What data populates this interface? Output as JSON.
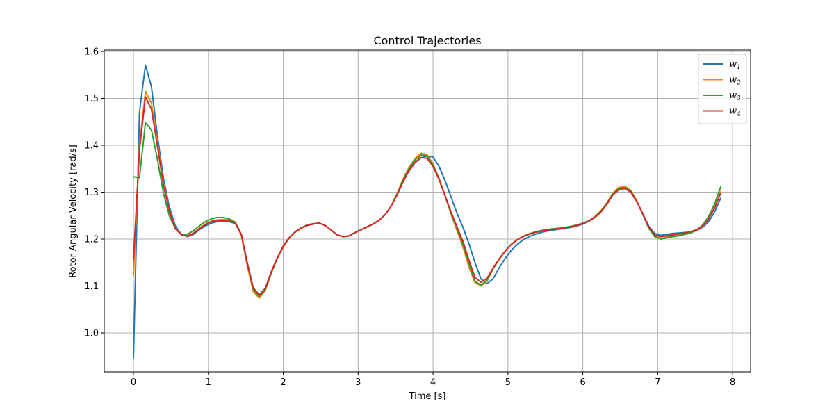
{
  "chart_data": {
    "type": "line",
    "title": "Control Trajectories",
    "xlabel": "Time [s]",
    "ylabel": "Rotor Angular Velocity [rad/s]",
    "xlim": [
      -0.39,
      8.24
    ],
    "ylim": [
      0.917,
      1.603
    ],
    "xticks": [
      0,
      1,
      2,
      3,
      4,
      5,
      6,
      7,
      8
    ],
    "xtick_labels": [
      "0",
      "1",
      "2",
      "3",
      "4",
      "5",
      "6",
      "7",
      "8"
    ],
    "yticks": [
      1.0,
      1.1,
      1.2,
      1.3,
      1.4,
      1.5,
      1.6
    ],
    "ytick_labels": [
      "1.0",
      "1.1",
      "1.2",
      "1.3",
      "1.4",
      "1.5",
      "1.6"
    ],
    "grid": true,
    "legend_position": "top-right",
    "x": [
      0,
      0.08,
      0.16,
      0.24,
      0.32,
      0.4,
      0.48,
      0.56,
      0.64,
      0.72,
      0.8,
      0.88,
      0.96,
      1.04,
      1.12,
      1.2,
      1.28,
      1.36,
      1.44,
      1.52,
      1.6,
      1.68,
      1.76,
      1.84,
      1.92,
      2.0,
      2.08,
      2.16,
      2.24,
      2.32,
      2.4,
      2.48,
      2.56,
      2.64,
      2.72,
      2.8,
      2.88,
      2.96,
      3.04,
      3.12,
      3.2,
      3.28,
      3.36,
      3.44,
      3.52,
      3.6,
      3.68,
      3.76,
      3.84,
      3.92,
      4.0,
      4.08,
      4.16,
      4.24,
      4.32,
      4.4,
      4.48,
      4.56,
      4.64,
      4.72,
      4.8,
      4.88,
      4.96,
      5.04,
      5.12,
      5.2,
      5.28,
      5.36,
      5.44,
      5.52,
      5.6,
      5.68,
      5.76,
      5.84,
      5.92,
      6.0,
      6.08,
      6.16,
      6.24,
      6.32,
      6.4,
      6.48,
      6.56,
      6.64,
      6.72,
      6.8,
      6.88,
      6.96,
      7.04,
      7.12,
      7.2,
      7.28,
      7.36,
      7.44,
      7.52,
      7.6,
      7.68,
      7.76,
      7.84
    ],
    "series": [
      {
        "name": "w",
        "subscript": "1",
        "color": "#1f77b4",
        "values": [
          0.947,
          1.47,
          1.571,
          1.525,
          1.42,
          1.33,
          1.268,
          1.228,
          1.21,
          1.205,
          1.21,
          1.22,
          1.228,
          1.234,
          1.237,
          1.238,
          1.237,
          1.233,
          1.21,
          1.15,
          1.095,
          1.08,
          1.095,
          1.13,
          1.16,
          1.185,
          1.203,
          1.215,
          1.224,
          1.229,
          1.232,
          1.234,
          1.229,
          1.219,
          1.209,
          1.205,
          1.207,
          1.214,
          1.22,
          1.226,
          1.232,
          1.24,
          1.252,
          1.27,
          1.295,
          1.323,
          1.345,
          1.363,
          1.373,
          1.377,
          1.375,
          1.355,
          1.325,
          1.29,
          1.255,
          1.225,
          1.19,
          1.15,
          1.115,
          1.105,
          1.115,
          1.138,
          1.158,
          1.175,
          1.188,
          1.198,
          1.205,
          1.21,
          1.214,
          1.217,
          1.219,
          1.221,
          1.223,
          1.225,
          1.228,
          1.232,
          1.238,
          1.246,
          1.258,
          1.275,
          1.295,
          1.306,
          1.308,
          1.3,
          1.28,
          1.255,
          1.228,
          1.212,
          1.208,
          1.21,
          1.212,
          1.213,
          1.214,
          1.215,
          1.218,
          1.225,
          1.237,
          1.258,
          1.287
        ]
      },
      {
        "name": "w",
        "subscript": "2",
        "color": "#ff7f0e",
        "values": [
          1.122,
          1.4,
          1.515,
          1.49,
          1.405,
          1.318,
          1.26,
          1.223,
          1.21,
          1.207,
          1.213,
          1.223,
          1.232,
          1.238,
          1.241,
          1.242,
          1.24,
          1.234,
          1.208,
          1.143,
          1.088,
          1.074,
          1.09,
          1.127,
          1.158,
          1.183,
          1.202,
          1.215,
          1.223,
          1.229,
          1.232,
          1.234,
          1.229,
          1.219,
          1.209,
          1.205,
          1.207,
          1.214,
          1.22,
          1.226,
          1.232,
          1.24,
          1.252,
          1.27,
          1.297,
          1.328,
          1.353,
          1.372,
          1.383,
          1.38,
          1.36,
          1.33,
          1.293,
          1.253,
          1.218,
          1.183,
          1.14,
          1.107,
          1.1,
          1.11,
          1.136,
          1.156,
          1.174,
          1.188,
          1.198,
          1.206,
          1.211,
          1.215,
          1.218,
          1.22,
          1.222,
          1.223,
          1.225,
          1.227,
          1.23,
          1.234,
          1.239,
          1.248,
          1.26,
          1.277,
          1.298,
          1.31,
          1.313,
          1.304,
          1.282,
          1.254,
          1.224,
          1.206,
          1.201,
          1.204,
          1.207,
          1.209,
          1.211,
          1.214,
          1.218,
          1.227,
          1.243,
          1.268,
          1.301
        ]
      },
      {
        "name": "w",
        "subscript": "3",
        "color": "#2ca02c",
        "values": [
          1.333,
          1.331,
          1.448,
          1.433,
          1.37,
          1.298,
          1.249,
          1.222,
          1.21,
          1.21,
          1.218,
          1.228,
          1.237,
          1.243,
          1.246,
          1.246,
          1.243,
          1.236,
          1.21,
          1.148,
          1.093,
          1.077,
          1.092,
          1.128,
          1.159,
          1.184,
          1.203,
          1.216,
          1.224,
          1.23,
          1.233,
          1.234,
          1.229,
          1.219,
          1.209,
          1.205,
          1.207,
          1.214,
          1.22,
          1.226,
          1.232,
          1.24,
          1.252,
          1.27,
          1.296,
          1.326,
          1.35,
          1.369,
          1.379,
          1.378,
          1.358,
          1.328,
          1.292,
          1.255,
          1.222,
          1.188,
          1.147,
          1.11,
          1.102,
          1.112,
          1.137,
          1.157,
          1.174,
          1.188,
          1.198,
          1.205,
          1.211,
          1.215,
          1.218,
          1.22,
          1.222,
          1.223,
          1.225,
          1.227,
          1.23,
          1.234,
          1.239,
          1.247,
          1.259,
          1.276,
          1.296,
          1.308,
          1.31,
          1.302,
          1.281,
          1.253,
          1.223,
          1.205,
          1.2,
          1.203,
          1.205,
          1.207,
          1.21,
          1.213,
          1.219,
          1.23,
          1.248,
          1.275,
          1.311
        ]
      },
      {
        "name": "w",
        "subscript": "4",
        "color": "#d62728",
        "values": [
          1.156,
          1.39,
          1.503,
          1.477,
          1.398,
          1.315,
          1.259,
          1.222,
          1.209,
          1.206,
          1.212,
          1.222,
          1.231,
          1.237,
          1.24,
          1.24,
          1.239,
          1.234,
          1.21,
          1.148,
          1.096,
          1.081,
          1.095,
          1.13,
          1.16,
          1.185,
          1.203,
          1.215,
          1.224,
          1.229,
          1.232,
          1.234,
          1.229,
          1.219,
          1.209,
          1.205,
          1.207,
          1.214,
          1.22,
          1.226,
          1.232,
          1.24,
          1.252,
          1.27,
          1.294,
          1.322,
          1.346,
          1.364,
          1.374,
          1.372,
          1.355,
          1.327,
          1.293,
          1.258,
          1.226,
          1.195,
          1.155,
          1.118,
          1.108,
          1.116,
          1.138,
          1.157,
          1.174,
          1.188,
          1.198,
          1.205,
          1.21,
          1.214,
          1.217,
          1.219,
          1.221,
          1.222,
          1.224,
          1.226,
          1.229,
          1.233,
          1.238,
          1.246,
          1.257,
          1.274,
          1.294,
          1.305,
          1.308,
          1.301,
          1.28,
          1.254,
          1.226,
          1.209,
          1.205,
          1.207,
          1.209,
          1.211,
          1.213,
          1.216,
          1.22,
          1.228,
          1.243,
          1.266,
          1.298
        ]
      }
    ]
  }
}
